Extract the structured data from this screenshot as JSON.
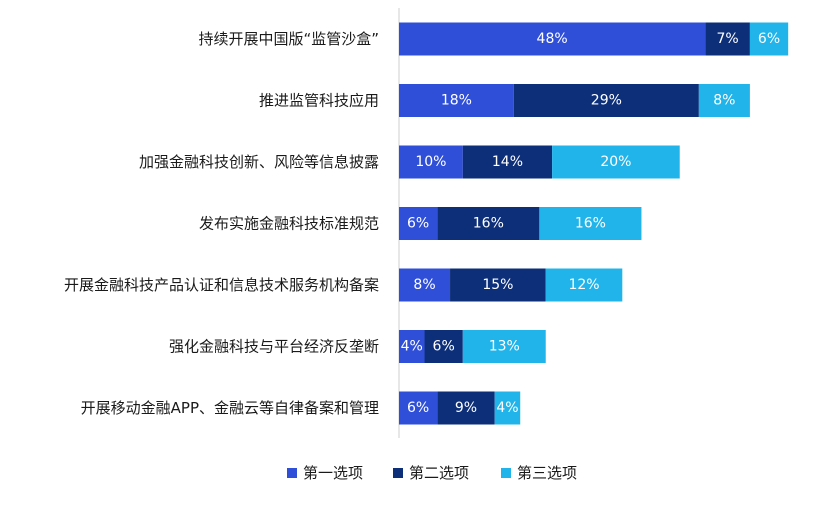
{
  "chart_data": {
    "type": "bar",
    "orientation": "horizontal",
    "stacked": true,
    "categories": [
      "持续开展中国版“监管沙盒”",
      "推进监管科技应用",
      "加强金融科技创新、风险等信息披露",
      "发布实施金融科技标准规范",
      "开展金融科技产品认证和信息技术服务机构备案",
      "强化金融科技与平台经济反垄断",
      "开展移动金融APP、金融云等自律备案和管理"
    ],
    "series": [
      {
        "name": "第一选项",
        "color": "#2f4fd8",
        "values": [
          48,
          18,
          10,
          6,
          8,
          4,
          6
        ]
      },
      {
        "name": "第二选项",
        "color": "#0d2f7a",
        "values": [
          7,
          29,
          14,
          16,
          15,
          6,
          9
        ]
      },
      {
        "name": "第三选项",
        "color": "#20b4ea",
        "values": [
          6,
          8,
          20,
          16,
          12,
          13,
          4
        ]
      }
    ],
    "value_suffix": "%",
    "xlim": [
      0,
      61
    ],
    "grid": false,
    "legend_position": "bottom-center"
  }
}
